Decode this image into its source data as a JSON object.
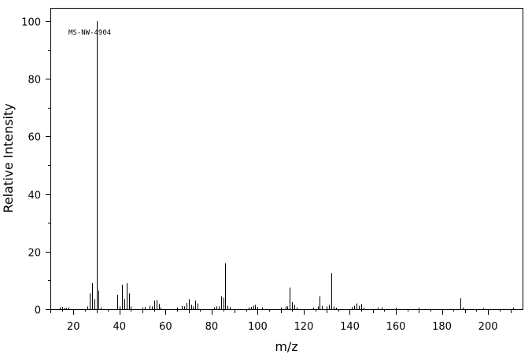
{
  "chart_data": {
    "type": "bar",
    "xlabel": "m/z",
    "ylabel": "Relative Intensity",
    "annotation": "MS-NW-4904",
    "xlim": [
      10,
      215
    ],
    "ylim": [
      0,
      100
    ],
    "x_ticks": [
      20,
      40,
      60,
      80,
      100,
      120,
      140,
      160,
      180,
      200
    ],
    "y_ticks": [
      0,
      20,
      40,
      60,
      80,
      100
    ],
    "grid": false,
    "peaks": [
      [
        14,
        0.6
      ],
      [
        15,
        0.8
      ],
      [
        16,
        0.5
      ],
      [
        17,
        0.4
      ],
      [
        18,
        0.6
      ],
      [
        26,
        1.0
      ],
      [
        27,
        5.5
      ],
      [
        28,
        9.0
      ],
      [
        29,
        3.5
      ],
      [
        30,
        100
      ],
      [
        31,
        6.5
      ],
      [
        32,
        0.6
      ],
      [
        39,
        5.0
      ],
      [
        40,
        1.0
      ],
      [
        41,
        8.5
      ],
      [
        42,
        3.5
      ],
      [
        43,
        9.0
      ],
      [
        44,
        5.5
      ],
      [
        45,
        1.0
      ],
      [
        50,
        0.6
      ],
      [
        51,
        0.8
      ],
      [
        53,
        1.2
      ],
      [
        54,
        1.0
      ],
      [
        55,
        3.0
      ],
      [
        56,
        3.2
      ],
      [
        57,
        1.8
      ],
      [
        58,
        0.6
      ],
      [
        65,
        0.6
      ],
      [
        67,
        1.2
      ],
      [
        68,
        1.0
      ],
      [
        69,
        2.2
      ],
      [
        70,
        3.5
      ],
      [
        71,
        1.5
      ],
      [
        72,
        1.0
      ],
      [
        73,
        3.0
      ],
      [
        74,
        2.0
      ],
      [
        81,
        0.6
      ],
      [
        82,
        1.0
      ],
      [
        83,
        1.0
      ],
      [
        84,
        4.5
      ],
      [
        85,
        4.0
      ],
      [
        86,
        16.0
      ],
      [
        87,
        1.2
      ],
      [
        88,
        0.8
      ],
      [
        96,
        0.6
      ],
      [
        97,
        0.8
      ],
      [
        98,
        1.2
      ],
      [
        99,
        1.5
      ],
      [
        100,
        0.8
      ],
      [
        102,
        0.6
      ],
      [
        110,
        0.6
      ],
      [
        112,
        1.0
      ],
      [
        113,
        1.0
      ],
      [
        114,
        7.5
      ],
      [
        115,
        2.5
      ],
      [
        116,
        1.5
      ],
      [
        117,
        0.6
      ],
      [
        124,
        0.6
      ],
      [
        126,
        1.0
      ],
      [
        127,
        4.5
      ],
      [
        128,
        1.2
      ],
      [
        130,
        1.0
      ],
      [
        131,
        1.5
      ],
      [
        132,
        12.5
      ],
      [
        133,
        1.0
      ],
      [
        134,
        0.5
      ],
      [
        141,
        0.8
      ],
      [
        142,
        1.2
      ],
      [
        143,
        2.0
      ],
      [
        144,
        1.2
      ],
      [
        145,
        1.8
      ],
      [
        146,
        0.6
      ],
      [
        152,
        0.6
      ],
      [
        154,
        0.6
      ],
      [
        160,
        0.5
      ],
      [
        170,
        0.5
      ],
      [
        188,
        3.8
      ],
      [
        189,
        0.6
      ],
      [
        198,
        0.4
      ],
      [
        211,
        0.5
      ]
    ]
  }
}
